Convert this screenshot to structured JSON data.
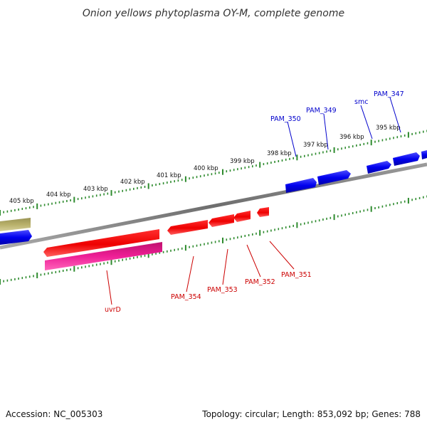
{
  "title": "Onion yellows phytoplasma OY-M, complete genome",
  "footer": {
    "accession": "Accession: NC_005303",
    "summary": "Topology: circular; Length: 853,092 bp; Genes: 788"
  },
  "colors": {
    "backbone": "#808080",
    "tick": "#2e8b2e",
    "forward_gene": "#0000ee",
    "reverse_gene": "#ee0000",
    "rna_gene": "#ee1f96",
    "misc_gene": "#b8b06a",
    "forward_label": "#0000cc",
    "reverse_label": "#cc0000"
  },
  "outer_ruler_labels": [
    "405 kbp",
    "404 kbp",
    "403 kbp",
    "402 kbp",
    "401 kbp",
    "400 kbp",
    "399 kbp",
    "398 kbp",
    "397 kbp",
    "396 kbp",
    "395 kbp"
  ],
  "forward_gene_labels": [
    "PAM_350",
    "PAM_349",
    "smc",
    "PAM_347"
  ],
  "reverse_gene_labels": [
    "uvrD",
    "PAM_354",
    "PAM_353",
    "PAM_352",
    "PAM_351"
  ]
}
